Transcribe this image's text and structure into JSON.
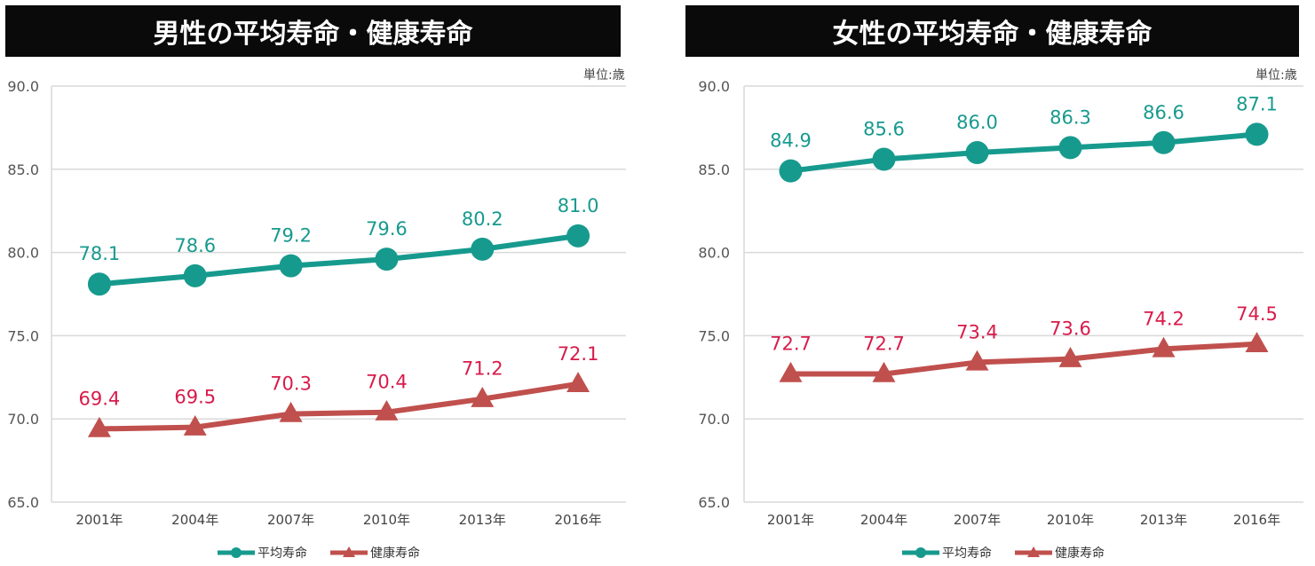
{
  "chart_data": [
    {
      "type": "line",
      "title": "男性の平均寿命・健康寿命",
      "unit_label": "単位:歳",
      "categories": [
        "2001年",
        "2004年",
        "2007年",
        "2010年",
        "2013年",
        "2016年"
      ],
      "ylim": [
        65.0,
        90.0
      ],
      "yticks": [
        "90.0",
        "85.0",
        "80.0",
        "75.0",
        "70.0",
        "65.0"
      ],
      "grid": true,
      "legend_position": "bottom",
      "series": [
        {
          "name": "平均寿命",
          "color": "#179a8e",
          "marker": "circle",
          "values": [
            78.1,
            78.6,
            79.2,
            79.6,
            80.2,
            81.0
          ],
          "labels": [
            "78.1",
            "78.6",
            "79.2",
            "79.6",
            "80.2",
            "81.0"
          ]
        },
        {
          "name": "健康寿命",
          "color": "#c0504d",
          "label_color": "#d81b4a",
          "marker": "triangle",
          "values": [
            69.4,
            69.5,
            70.3,
            70.4,
            71.2,
            72.1
          ],
          "labels": [
            "69.4",
            "69.5",
            "70.3",
            "70.4",
            "71.2",
            "72.1"
          ]
        }
      ]
    },
    {
      "type": "line",
      "title": "女性の平均寿命・健康寿命",
      "unit_label": "単位:歳",
      "categories": [
        "2001年",
        "2004年",
        "2007年",
        "2010年",
        "2013年",
        "2016年"
      ],
      "ylim": [
        65.0,
        90.0
      ],
      "yticks": [
        "90.0",
        "85.0",
        "80.0",
        "75.0",
        "70.0",
        "65.0"
      ],
      "grid": true,
      "legend_position": "bottom",
      "series": [
        {
          "name": "平均寿命",
          "color": "#179a8e",
          "marker": "circle",
          "values": [
            84.9,
            85.6,
            86.0,
            86.3,
            86.6,
            87.1
          ],
          "labels": [
            "84.9",
            "85.6",
            "86.0",
            "86.3",
            "86.6",
            "87.1"
          ]
        },
        {
          "name": "健康寿命",
          "color": "#c0504d",
          "label_color": "#d81b4a",
          "marker": "triangle",
          "values": [
            72.7,
            72.7,
            73.4,
            73.6,
            74.2,
            74.5
          ],
          "labels": [
            "72.7",
            "72.7",
            "73.4",
            "73.6",
            "74.2",
            "74.5"
          ]
        }
      ]
    }
  ]
}
